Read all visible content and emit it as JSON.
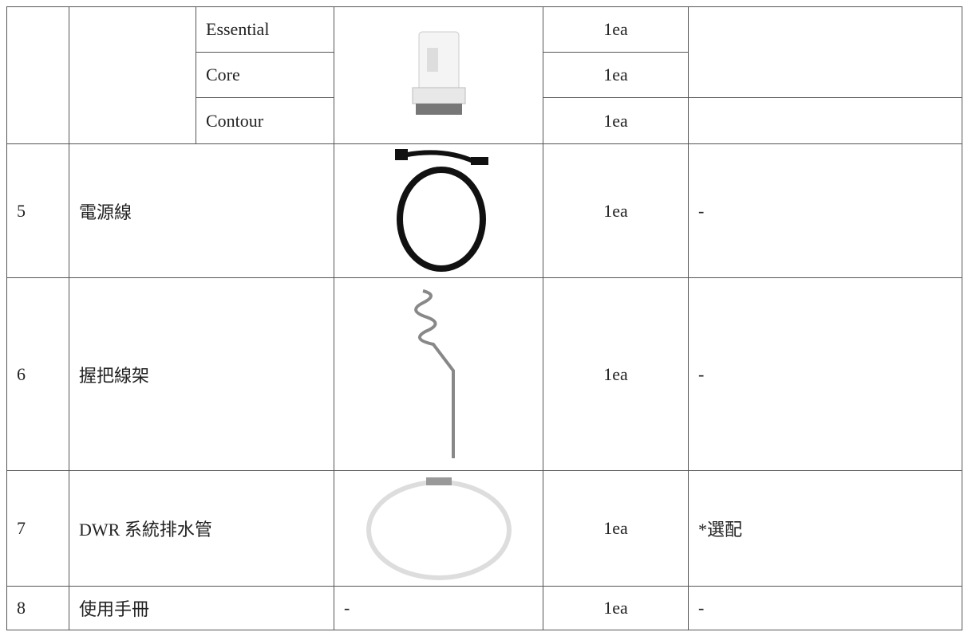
{
  "model_rows": [
    {
      "model": "Essential",
      "qty": "1ea"
    },
    {
      "model": "Core",
      "qty": "1ea"
    },
    {
      "model": "Contour",
      "qty": "1ea"
    }
  ],
  "items": [
    {
      "no": 5,
      "name": "電源線",
      "qty": "1ea",
      "note": "-"
    },
    {
      "no": 6,
      "name": "握把線架",
      "qty": "1ea",
      "note": "-"
    },
    {
      "no": 7,
      "name": "DWR 系統排水管",
      "qty": "1ea",
      "note": "*選配"
    },
    {
      "no": 8,
      "name": "使用手冊",
      "image": "-",
      "qty": "1ea",
      "note": "-"
    }
  ]
}
